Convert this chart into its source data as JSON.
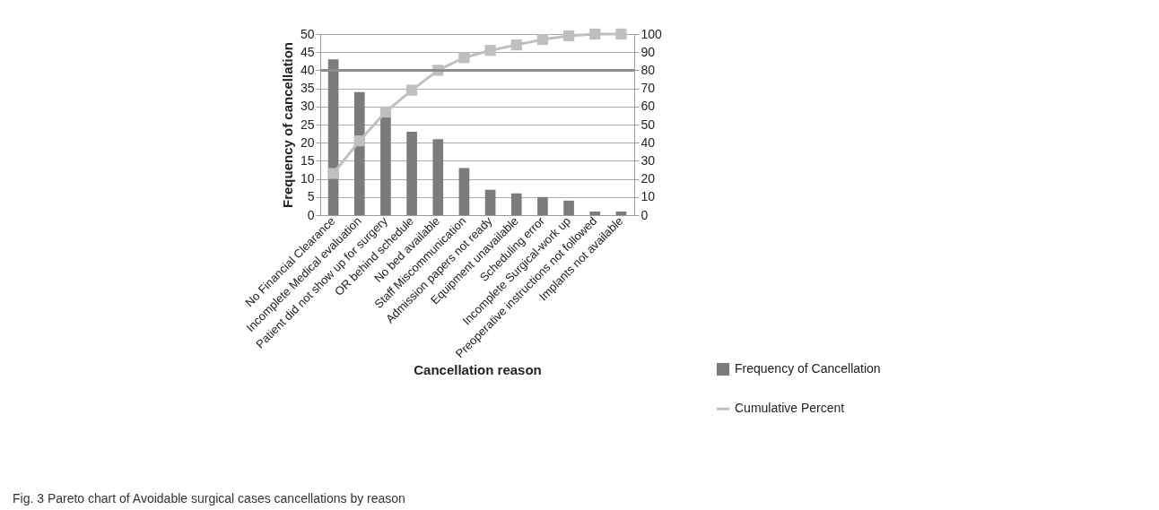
{
  "chart_data": {
    "type": "bar",
    "xlabel": "Cancellation reason",
    "ylabel": "Frequency of cancellation",
    "categories": [
      "No Financial Clearance",
      "Incomplete Medical evaluation",
      "Patient did not show up for surgery",
      "OR behind schedule",
      "No bed available",
      "Staff Miscommunication",
      "Admission papers not ready",
      "Equipment unavailable",
      "Scheduling error",
      "Incomplete Surgical-work up",
      "Preoperative instructions not followed",
      "Implants not available"
    ],
    "series": [
      {
        "name": "Frequency of Cancellation",
        "color": "#7b7b7d",
        "values": [
          43,
          34,
          27,
          23,
          21,
          13,
          7,
          6,
          5,
          4,
          1,
          1
        ]
      },
      {
        "name": "Cumulative Percent",
        "type": "line",
        "axis": "y2",
        "color": "#bfbfbf",
        "marker": "square",
        "line_style": "solid",
        "values": [
          23,
          41,
          57,
          69,
          80,
          87,
          91,
          94,
          97,
          99,
          100,
          100
        ]
      }
    ],
    "ylim": [
      0,
      50
    ],
    "yticks": [
      0,
      5,
      10,
      15,
      20,
      25,
      30,
      35,
      40,
      45,
      50
    ],
    "y2lim": [
      0,
      100
    ],
    "y2ticks": [
      0,
      10,
      20,
      30,
      40,
      50,
      60,
      70,
      80,
      90,
      100
    ],
    "ref_lines": [
      {
        "axis": "y2",
        "value": 80,
        "color": "#8c8c8c"
      }
    ],
    "grid": "y",
    "legend": "right",
    "annotations": [
      "Fig. 3 Pareto chart of Avoidable surgical cases cancellations by reason"
    ]
  }
}
